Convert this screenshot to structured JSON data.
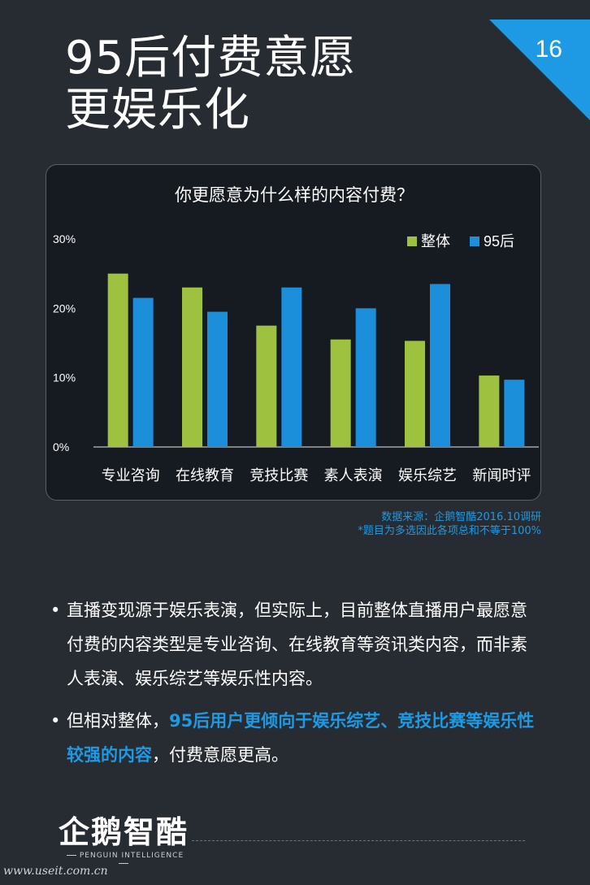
{
  "page": {
    "number": "16",
    "title_line1": "95后付费意愿",
    "title_line2": "更娱乐化"
  },
  "chart_data": {
    "type": "bar",
    "title": "你更愿意为什么样的内容付费？",
    "categories": [
      "专业咨询",
      "在线教育",
      "竞技比赛",
      "素人表演",
      "娱乐综艺",
      "新闻时评"
    ],
    "series": [
      {
        "name": "整体",
        "color": "#9ec23f",
        "values": [
          25,
          23,
          17.5,
          15.5,
          15.3,
          10.3
        ]
      },
      {
        "name": "95后",
        "color": "#1b8fda",
        "values": [
          21.5,
          19.5,
          23,
          20,
          23.5,
          9.7
        ]
      }
    ],
    "yticks": [
      "0%",
      "10%",
      "20%",
      "30%"
    ],
    "ylim": [
      0,
      30
    ],
    "legend_position": "top-right",
    "grid": false
  },
  "source": {
    "line1": "数据来源：企鹅智酷2016.10调研",
    "line2": "*题目为多选因此各项总和不等于100%"
  },
  "bullets": [
    {
      "text": "直播变现源于娱乐表演，但实际上，目前整体直播用户最愿意付费的内容类型是专业咨询、在线教育等资讯类内容，而非素人表演、娱乐综艺等娱乐性内容。"
    },
    {
      "pre": "但相对整体，",
      "highlight": "95后用户更倾向于娱乐综艺、竞技比赛等娱乐性较强的内容",
      "post": "，付费意愿更高。"
    }
  ],
  "logo": {
    "name": "企鹅智酷",
    "subtitle": "PENGUIN INTELLIGENCE"
  },
  "watermark": "www.useit.com.cn"
}
